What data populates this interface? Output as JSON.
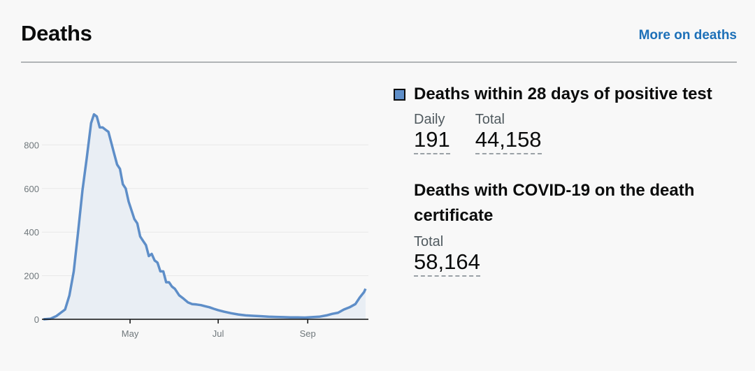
{
  "header": {
    "title": "Deaths",
    "more_link": "More on deaths"
  },
  "metrics": {
    "deaths_28_days": {
      "title": "Deaths within 28 days of positive test",
      "daily_label": "Daily",
      "daily_value": "191",
      "total_label": "Total",
      "total_value": "44,158"
    },
    "deaths_certificate": {
      "title": "Deaths with COVID-19 on the death certificate",
      "total_label": "Total",
      "total_value": "58,164"
    }
  },
  "colors": {
    "line": "#5e8ec8",
    "area": "#e9eef4",
    "link": "#1d70b8"
  },
  "chart_data": {
    "type": "area",
    "series": [
      {
        "points": [
          [
            "2020-03-02",
            0
          ],
          [
            "2020-03-07",
            3
          ],
          [
            "2020-03-11",
            15
          ],
          [
            "2020-03-14",
            30
          ],
          [
            "2020-03-17",
            45
          ],
          [
            "2020-03-20",
            110
          ],
          [
            "2020-03-23",
            220
          ],
          [
            "2020-03-26",
            400
          ],
          [
            "2020-03-29",
            590
          ],
          [
            "2020-04-01",
            740
          ],
          [
            "2020-04-04",
            900
          ],
          [
            "2020-04-06",
            940
          ],
          [
            "2020-04-08",
            930
          ],
          [
            "2020-04-10",
            880
          ],
          [
            "2020-04-12",
            880
          ],
          [
            "2020-04-14",
            870
          ],
          [
            "2020-04-16",
            860
          ],
          [
            "2020-04-18",
            810
          ],
          [
            "2020-04-20",
            760
          ],
          [
            "2020-04-22",
            710
          ],
          [
            "2020-04-24",
            690
          ],
          [
            "2020-04-26",
            620
          ],
          [
            "2020-04-28",
            600
          ],
          [
            "2020-04-30",
            540
          ],
          [
            "2020-05-02",
            500
          ],
          [
            "2020-05-04",
            460
          ],
          [
            "2020-05-06",
            440
          ],
          [
            "2020-05-08",
            380
          ],
          [
            "2020-05-10",
            360
          ],
          [
            "2020-05-12",
            340
          ],
          [
            "2020-05-14",
            290
          ],
          [
            "2020-05-16",
            300
          ],
          [
            "2020-05-18",
            270
          ],
          [
            "2020-05-20",
            260
          ],
          [
            "2020-05-22",
            220
          ],
          [
            "2020-05-24",
            220
          ],
          [
            "2020-05-26",
            170
          ],
          [
            "2020-05-28",
            170
          ],
          [
            "2020-05-30",
            150
          ],
          [
            "2020-06-01",
            140
          ],
          [
            "2020-06-04",
            110
          ],
          [
            "2020-06-07",
            95
          ],
          [
            "2020-06-10",
            78
          ],
          [
            "2020-06-13",
            70
          ],
          [
            "2020-06-16",
            68
          ],
          [
            "2020-06-19",
            65
          ],
          [
            "2020-06-22",
            60
          ],
          [
            "2020-06-25",
            55
          ],
          [
            "2020-06-28",
            48
          ],
          [
            "2020-07-01",
            42
          ],
          [
            "2020-07-05",
            35
          ],
          [
            "2020-07-10",
            28
          ],
          [
            "2020-07-15",
            22
          ],
          [
            "2020-07-20",
            18
          ],
          [
            "2020-07-25",
            16
          ],
          [
            "2020-07-31",
            14
          ],
          [
            "2020-08-05",
            12
          ],
          [
            "2020-08-10",
            11
          ],
          [
            "2020-08-15",
            10
          ],
          [
            "2020-08-20",
            9
          ],
          [
            "2020-08-25",
            9
          ],
          [
            "2020-08-30",
            8
          ],
          [
            "2020-09-04",
            10
          ],
          [
            "2020-09-09",
            12
          ],
          [
            "2020-09-14",
            18
          ],
          [
            "2020-09-18",
            25
          ],
          [
            "2020-09-22",
            30
          ],
          [
            "2020-09-26",
            45
          ],
          [
            "2020-09-30",
            55
          ],
          [
            "2020-10-04",
            70
          ],
          [
            "2020-10-07",
            100
          ],
          [
            "2020-10-10",
            125
          ],
          [
            "2020-10-11",
            140
          ]
        ]
      }
    ],
    "x_ticks": [
      {
        "date": "2020-05-01",
        "label": "May"
      },
      {
        "date": "2020-07-01",
        "label": "Jul"
      },
      {
        "date": "2020-09-01",
        "label": "Sep"
      }
    ],
    "y_ticks": [
      0,
      200,
      400,
      600,
      800
    ],
    "xlim": [
      "2020-03-01",
      "2020-10-13"
    ],
    "ylim": [
      0,
      1000
    ],
    "grid": true
  }
}
